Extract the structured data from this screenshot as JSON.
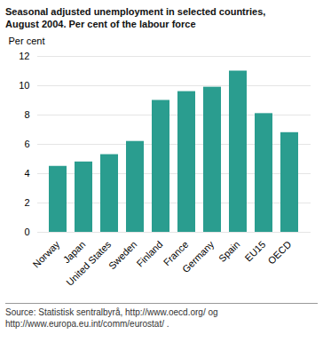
{
  "chart_data": {
    "type": "bar",
    "title": "Seasonal adjusted unemployment in selected countries,\nAugust 2004. Per cent of the labour force",
    "ylabel": "Per cent",
    "categories": [
      "Norway",
      "Japan",
      "United States",
      "Sweden",
      "Finland",
      "France",
      "Germany",
      "Spain",
      "EU15",
      "OECD"
    ],
    "values": [
      4.5,
      4.8,
      5.3,
      6.2,
      9.0,
      9.6,
      9.9,
      11.0,
      8.1,
      6.8
    ],
    "color": "#2a9d8f",
    "ylim": [
      0,
      12
    ],
    "yticks": [
      0,
      2,
      4,
      6,
      8,
      10,
      12
    ],
    "grid": true,
    "source": "Source: Statistisk sentralbyrå, http://www.oecd.org/ og\nhttp://www.europa.eu.int/comm/eurostat/ ."
  }
}
